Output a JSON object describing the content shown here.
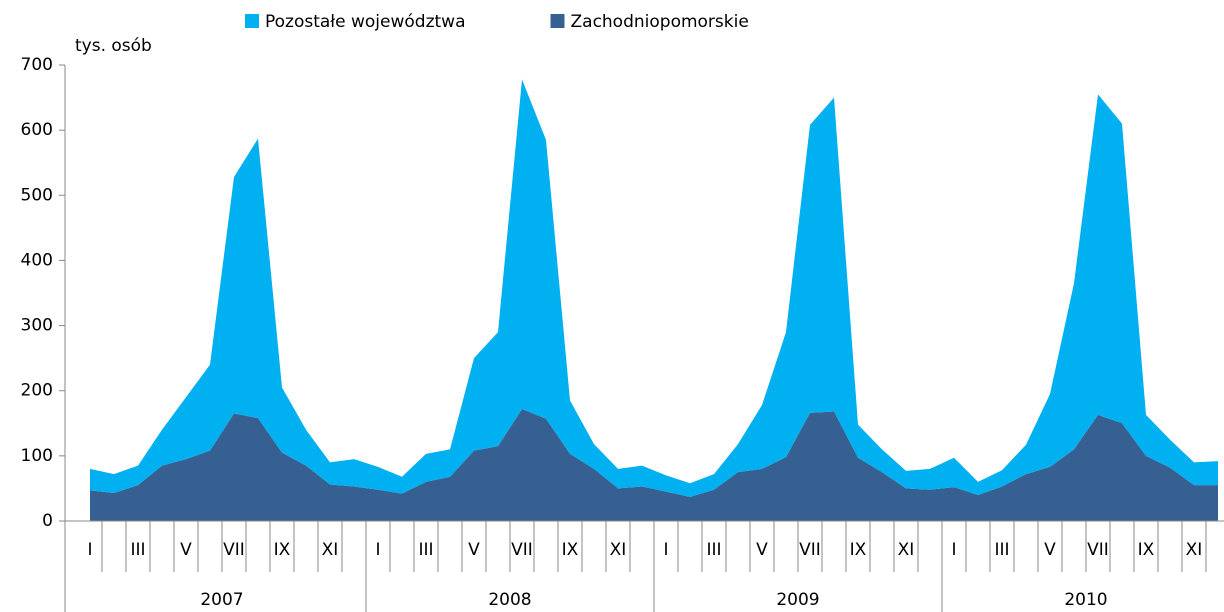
{
  "chart_data": {
    "type": "stacked_area",
    "y_axis_label": "tys. osób",
    "categories": [
      "I",
      null,
      "III",
      null,
      "V",
      null,
      "VII",
      null,
      "IX",
      null,
      "XI",
      null,
      "I",
      null,
      "III",
      null,
      "V",
      null,
      "VII",
      null,
      "IX",
      null,
      "XI",
      null,
      "I",
      null,
      "III",
      null,
      "V",
      null,
      "VII",
      null,
      "IX",
      null,
      "XI",
      null,
      "I",
      null,
      "III",
      null,
      "V",
      null,
      "VII",
      null,
      "IX",
      null,
      "XI",
      null
    ],
    "year_groups": [
      "2007",
      "2008",
      "2009",
      "2010"
    ],
    "series": [
      {
        "name": "Pozostałe województwa",
        "color": "#00b0f0",
        "values": [
          33,
          29,
          30,
          55,
          95,
          132,
          363,
          429,
          100,
          55,
          34,
          42,
          35,
          26,
          43,
          42,
          142,
          175,
          506,
          428,
          82,
          38,
          30,
          32,
          25,
          21,
          24,
          43,
          98,
          192,
          442,
          482,
          51,
          35,
          27,
          32,
          45,
          20,
          25,
          45,
          112,
          255,
          492,
          460,
          63,
          43,
          35,
          37
        ]
      },
      {
        "name": "Zachodniopomorskie",
        "color": "#376092",
        "values": [
          47,
          43,
          55,
          85,
          95,
          108,
          165,
          158,
          105,
          85,
          56,
          53,
          48,
          42,
          60,
          68,
          108,
          115,
          172,
          157,
          103,
          80,
          50,
          53,
          45,
          37,
          48,
          75,
          80,
          98,
          166,
          168,
          97,
          75,
          50,
          48,
          52,
          40,
          53,
          72,
          83,
          110,
          163,
          150,
          100,
          82,
          55,
          55
        ]
      }
    ],
    "stack_order": [
      "Zachodniopomorskie",
      "Pozostałe województwa"
    ],
    "ylim": [
      0,
      700
    ],
    "yticks": [
      0,
      100,
      200,
      300,
      400,
      500,
      600,
      700
    ],
    "grid": false,
    "legend": "top"
  }
}
